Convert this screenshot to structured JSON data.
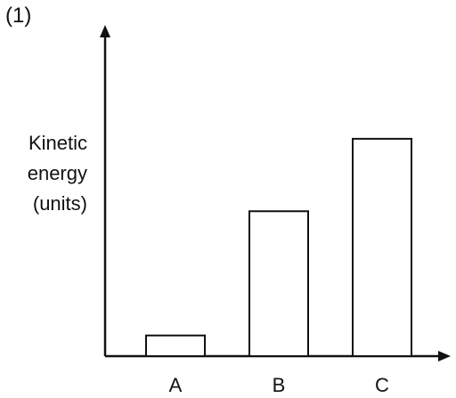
{
  "figure_label": "(1)",
  "chart_data": {
    "type": "bar",
    "categories": [
      "A",
      "B",
      "C"
    ],
    "values": [
      1,
      7,
      10.5
    ],
    "ylabel_lines": [
      "Kinetic",
      "energy",
      "(units)"
    ],
    "xlabel": "",
    "ylim": [
      0,
      16
    ],
    "grid": false,
    "legend": "none",
    "colors": {
      "bar_fill": "#ffffff",
      "bar_stroke": "#111111",
      "axis": "#111111"
    }
  }
}
